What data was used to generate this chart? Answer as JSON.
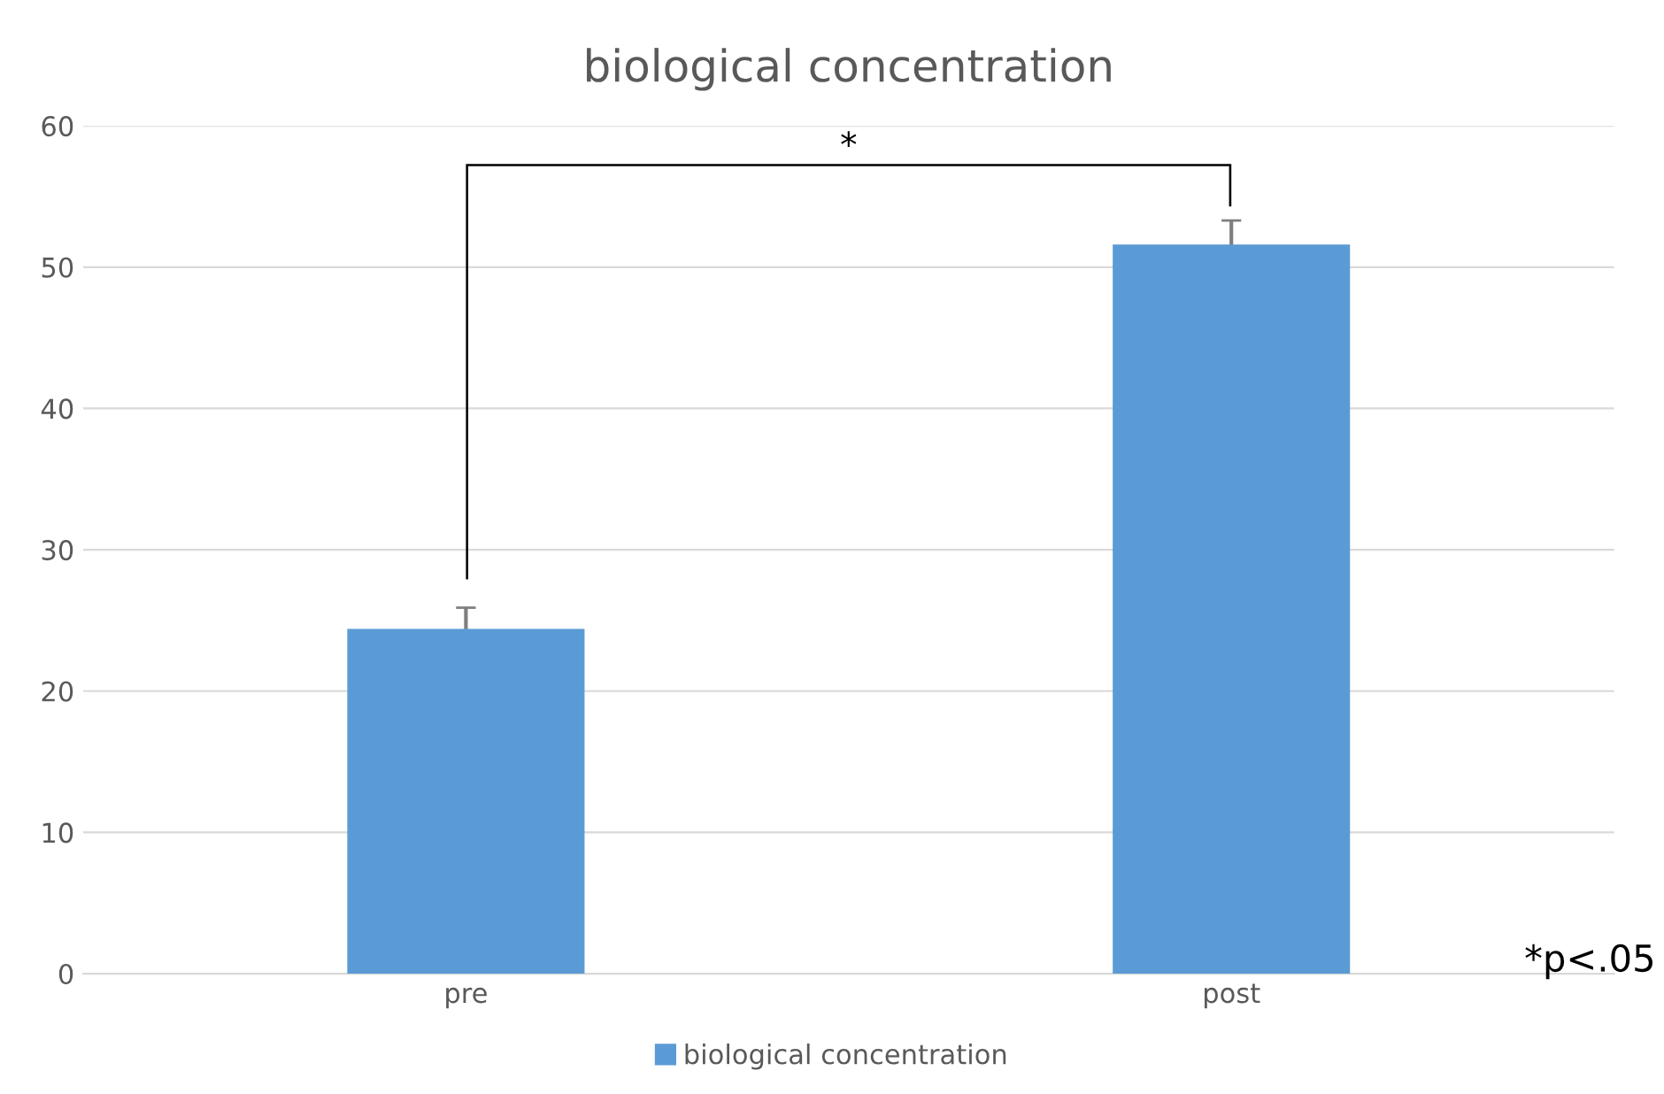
{
  "chart_data": {
    "type": "bar",
    "title": "biological concentration",
    "categories": [
      "pre",
      "post"
    ],
    "series": [
      {
        "name": "biological concentration",
        "color": "#5b9bd5",
        "values": [
          24.4,
          51.6
        ],
        "errors": [
          1.5,
          1.7
        ]
      }
    ],
    "ylim": [
      0,
      60
    ],
    "yticks": [
      0,
      10,
      20,
      30,
      40,
      50,
      60
    ],
    "grid": "y",
    "legend": "bottom",
    "annotations": [
      "*",
      "*p<.05"
    ]
  }
}
